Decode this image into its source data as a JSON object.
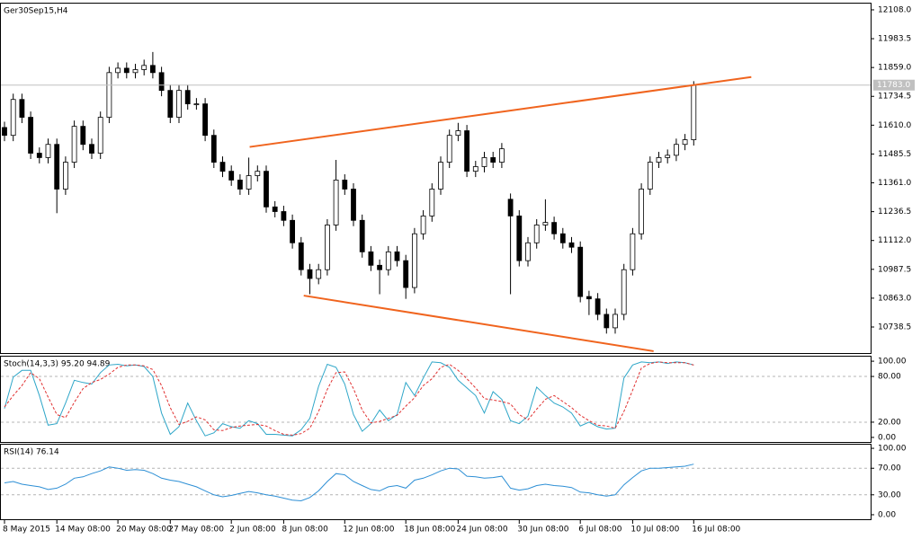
{
  "chart_data": [
    {
      "type": "candlestick",
      "title": "Ger30Sep15,H4",
      "categories": [
        "8 May 2015",
        null,
        null,
        null,
        null,
        null,
        "14 May 08:00",
        null,
        null,
        null,
        null,
        null,
        null,
        "20 May 08:00",
        null,
        null,
        null,
        null,
        null,
        "27 May 08:00",
        null,
        null,
        null,
        null,
        null,
        null,
        "2 Jun 08:00",
        null,
        null,
        null,
        null,
        null,
        "8 Jun 08:00",
        null,
        null,
        null,
        null,
        null,
        null,
        "12 Jun 08:00",
        null,
        null,
        null,
        null,
        null,
        null,
        "18 Jun 08:00",
        null,
        null,
        null,
        null,
        null,
        "24 Jun 08:00",
        null,
        null,
        null,
        null,
        null,
        null,
        "30 Jun 08:00",
        null,
        null,
        null,
        null,
        null,
        null,
        "6 Jul 08:00",
        null,
        null,
        null,
        null,
        null,
        "10 Jul 08:00",
        null,
        null,
        null,
        null,
        null,
        null,
        "16 Jul 08:00"
      ],
      "open": [
        11600,
        11566,
        11721,
        11644,
        11489,
        11470,
        11527,
        11334,
        11450,
        11605,
        11527,
        11489,
        11644,
        11837,
        11856,
        11837,
        11850,
        11868,
        11837,
        11760,
        11644,
        11760,
        11702,
        11702,
        11566,
        11450,
        11411,
        11373,
        11334,
        11392,
        11411,
        11257,
        11237,
        11199,
        11102,
        10986,
        10948,
        10986,
        11179,
        11373,
        11334,
        11199,
        11063,
        11005,
        10986,
        11063,
        11025,
        10909,
        11141,
        11218,
        11334,
        11450,
        11566,
        11586,
        11411,
        11431,
        11470,
        11450,
        11290,
        11218,
        11025,
        11102,
        11179,
        11190,
        11141,
        11102,
        11083,
        10870,
        10860,
        10793,
        10735,
        10793,
        10986,
        11141,
        11334,
        11450,
        11470,
        11480,
        11527,
        11547
      ],
      "high": [
        11625,
        11746,
        11746,
        11669,
        11514,
        11552,
        11552,
        11475,
        11630,
        11630,
        11552,
        11669,
        11862,
        11881,
        11881,
        11875,
        11893,
        11926,
        11862,
        11785,
        11785,
        11785,
        11727,
        11727,
        11591,
        11475,
        11436,
        11398,
        11470,
        11436,
        11436,
        11282,
        11262,
        11224,
        11127,
        11011,
        11011,
        11204,
        11460,
        11398,
        11359,
        11224,
        11088,
        11030,
        11088,
        11088,
        11050,
        11166,
        11243,
        11359,
        11475,
        11591,
        11620,
        11611,
        11456,
        11495,
        11495,
        11533,
        11315,
        11243,
        11127,
        11204,
        11290,
        11215,
        11166,
        11127,
        11108,
        10895,
        10885,
        10818,
        10818,
        11011,
        11166,
        11359,
        11475,
        11495,
        11505,
        11552,
        11572,
        11800
      ],
      "low": [
        11541,
        11541,
        11619,
        11464,
        11445,
        11445,
        11230,
        11309,
        11425,
        11502,
        11464,
        11464,
        11619,
        11812,
        11812,
        11812,
        11825,
        11812,
        11735,
        11619,
        11619,
        11677,
        11677,
        11541,
        11425,
        11386,
        11348,
        11309,
        11309,
        11367,
        11232,
        11212,
        11174,
        11077,
        10961,
        10880,
        10923,
        10961,
        11154,
        11309,
        11174,
        11038,
        10980,
        10880,
        10961,
        11000,
        10860,
        10884,
        11116,
        11193,
        11309,
        11425,
        11541,
        11386,
        11386,
        11406,
        11425,
        11425,
        10880,
        11000,
        11000,
        11077,
        11154,
        11116,
        11077,
        11058,
        10845,
        10790,
        10768,
        10710,
        10710,
        10768,
        10961,
        11116,
        11309,
        11425,
        11445,
        11455,
        11502,
        11522
      ],
      "close": [
        11566,
        11721,
        11644,
        11489,
        11470,
        11527,
        11334,
        11450,
        11605,
        11527,
        11489,
        11644,
        11837,
        11856,
        11837,
        11850,
        11868,
        11837,
        11760,
        11644,
        11760,
        11702,
        11702,
        11566,
        11450,
        11411,
        11373,
        11334,
        11392,
        11411,
        11257,
        11237,
        11199,
        11102,
        10986,
        10948,
        10986,
        11179,
        11373,
        11334,
        11199,
        11063,
        11005,
        10986,
        11063,
        11025,
        10909,
        11141,
        11218,
        11334,
        11450,
        11566,
        11586,
        11411,
        11431,
        11470,
        11450,
        11508,
        11218,
        11025,
        11102,
        11179,
        11190,
        11141,
        11102,
        11083,
        10870,
        10860,
        10793,
        10735,
        10793,
        10986,
        11141,
        11334,
        11450,
        11470,
        11480,
        11527,
        11547,
        11783
      ],
      "up_color": "#ffffff",
      "down_color": "#000000",
      "ylim": [
        10626,
        12135
      ],
      "yticks": [
        {
          "value": 12108,
          "label": "12108.0"
        },
        {
          "value": 11983.5,
          "label": "11983.5"
        },
        {
          "value": 11859,
          "label": "11859.0"
        },
        {
          "value": 11734.5,
          "label": "11734.5"
        },
        {
          "value": 11610,
          "label": "11610.0"
        },
        {
          "value": 11485.5,
          "label": "11485.5"
        },
        {
          "value": 11361,
          "label": "11361.0"
        },
        {
          "value": 11236.5,
          "label": "11236.5"
        },
        {
          "value": 11112,
          "label": "11112.0"
        },
        {
          "value": 10987.5,
          "label": "10987.5"
        },
        {
          "value": 10863,
          "label": "10863.0"
        },
        {
          "value": 10738.5,
          "label": "10738.5"
        }
      ],
      "last_price": {
        "value": 11783,
        "label": "11783.0"
      },
      "trendlines": [
        {
          "color": "#f0641e",
          "x": [
            28.1,
            85.6
          ],
          "y": [
            11516,
            11818
          ]
        },
        {
          "color": "#f0641e",
          "x": [
            34.3,
            74.4
          ],
          "y": [
            10874,
            10634
          ]
        }
      ]
    },
    {
      "type": "line",
      "title": "Stoch(14,3,3) 95.20 94.89",
      "series": [
        {
          "color": "#2ea6c8",
          "values": [
            38,
            79,
            88,
            88,
            55,
            16,
            18,
            45,
            75,
            72,
            70,
            85,
            95,
            96,
            94,
            95,
            93,
            80,
            32,
            4,
            14,
            45,
            22,
            2,
            6,
            18,
            14,
            12,
            22,
            18,
            4,
            4,
            3,
            2,
            10,
            25,
            67,
            96,
            92,
            70,
            30,
            8,
            18,
            36,
            22,
            30,
            72,
            55,
            78,
            99,
            98,
            92,
            75,
            65,
            55,
            32,
            60,
            50,
            22,
            18,
            28,
            66,
            55,
            45,
            40,
            32,
            15,
            20,
            14,
            11,
            12,
            78,
            95,
            99,
            98,
            99,
            97,
            99,
            98,
            95.2
          ]
        },
        {
          "color": "#e03030",
          "dashed": true,
          "values": [
            40,
            55,
            68,
            85,
            77,
            53,
            30,
            26,
            46,
            64,
            72,
            76,
            83,
            92,
            95,
            95,
            94,
            89,
            68,
            39,
            17,
            21,
            27,
            23,
            10,
            9,
            13,
            15,
            16,
            17,
            15,
            9,
            4,
            3,
            5,
            12,
            34,
            63,
            85,
            86,
            64,
            36,
            19,
            21,
            25,
            29,
            41,
            52,
            68,
            77,
            92,
            96,
            88,
            77,
            65,
            51,
            49,
            47,
            44,
            30,
            23,
            37,
            50,
            55,
            47,
            39,
            29,
            22,
            16,
            15,
            12,
            34,
            62,
            91,
            97,
            99,
            98,
            98,
            98,
            94.89
          ]
        }
      ],
      "ylim": [
        -6,
        106
      ],
      "yticks": [
        {
          "value": 100,
          "label": "100.00"
        },
        {
          "value": 80,
          "label": "80.00"
        },
        {
          "value": 20,
          "label": "20.00"
        },
        {
          "value": 0,
          "label": "0.00"
        }
      ]
    },
    {
      "type": "line",
      "title": "RSI(14) 76.14",
      "series": [
        {
          "color": "#2d8fd5",
          "values": [
            48,
            50,
            46,
            44,
            42,
            38,
            40,
            46,
            55,
            57,
            62,
            66,
            72,
            70,
            67,
            68,
            67,
            62,
            55,
            52,
            50,
            46,
            42,
            36,
            30,
            27,
            29,
            32,
            35,
            33,
            30,
            28,
            25,
            22,
            21,
            26,
            36,
            50,
            62,
            60,
            50,
            44,
            38,
            36,
            42,
            44,
            40,
            52,
            55,
            60,
            66,
            70,
            69,
            58,
            57,
            55,
            56,
            58,
            40,
            37,
            39,
            44,
            46,
            44,
            43,
            41,
            34,
            33,
            30,
            28,
            30,
            45,
            56,
            66,
            70,
            70,
            71,
            72,
            73,
            76.14
          ]
        }
      ],
      "ylim": [
        -6.8,
        105.5
      ],
      "yticks": [
        {
          "value": 100,
          "label": "100.00"
        },
        {
          "value": 70,
          "label": "70.00"
        },
        {
          "value": 30,
          "label": "30.00"
        },
        {
          "value": 0,
          "label": "0.00"
        }
      ]
    }
  ]
}
